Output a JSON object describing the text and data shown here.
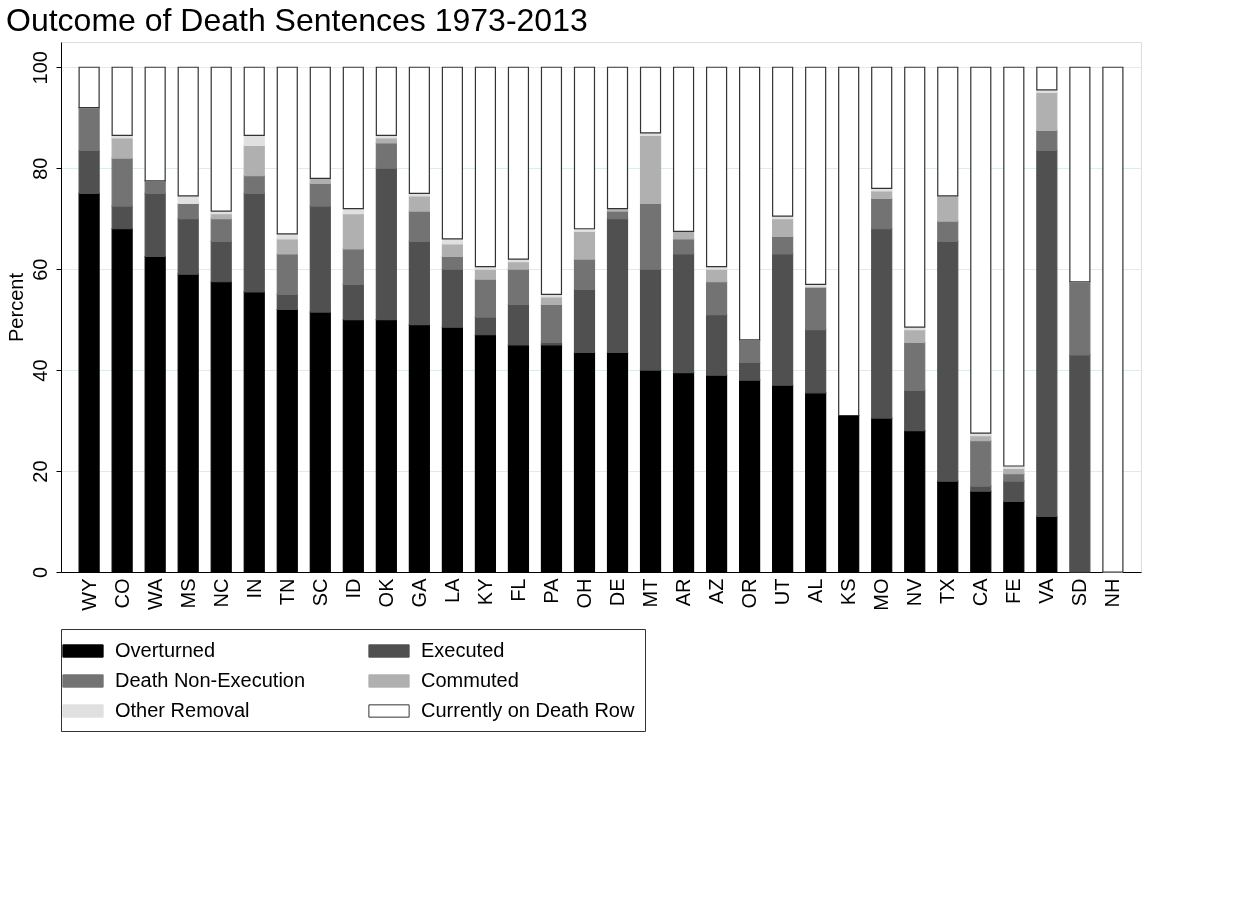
{
  "chart_data": {
    "type": "bar",
    "stacked": true,
    "title": "Outcome of Death Sentences 1973-2013",
    "ylabel": "Percent",
    "categories": [
      "WY",
      "CO",
      "WA",
      "MS",
      "NC",
      "IN",
      "TN",
      "SC",
      "ID",
      "OK",
      "GA",
      "LA",
      "KY",
      "FL",
      "PA",
      "OH",
      "DE",
      "MT",
      "AR",
      "AZ",
      "OR",
      "UT",
      "AL",
      "KS",
      "MO",
      "NV",
      "TX",
      "CA",
      "FE",
      "VA",
      "SD",
      "NH"
    ],
    "ylim": [
      0,
      105
    ],
    "yticks": [
      0,
      20,
      40,
      60,
      80,
      100
    ],
    "grid": "y",
    "legend": "bottom",
    "series": [
      {
        "name": "Overturned",
        "color": "#000000",
        "values": [
          75,
          68,
          62.5,
          59,
          57.5,
          55.5,
          52,
          51.5,
          50,
          50,
          49,
          48.5,
          47,
          45,
          45,
          43.5,
          43.5,
          40,
          39.5,
          39,
          38,
          37,
          35.5,
          31,
          30.5,
          28,
          18,
          16,
          14,
          11,
          0,
          0
        ]
      },
      {
        "name": "Executed",
        "color": "#505050",
        "values": [
          8.5,
          4.5,
          12.5,
          11,
          8,
          19.5,
          3,
          21,
          7,
          30,
          16.5,
          11.5,
          3.5,
          8,
          0.5,
          12.5,
          26.5,
          20,
          23.5,
          12,
          3.5,
          26,
          12.5,
          0,
          37.5,
          8,
          47.5,
          1,
          4,
          72.5,
          43,
          0
        ]
      },
      {
        "name": "Death Non-Execution",
        "color": "#737373",
        "values": [
          8.5,
          9.5,
          2.5,
          3,
          4.5,
          3.5,
          8,
          4.5,
          7,
          5,
          6,
          2.5,
          7.5,
          7,
          7.5,
          6,
          1.5,
          13,
          3,
          6.5,
          4.5,
          3.5,
          8.5,
          0,
          6,
          9.5,
          4,
          9,
          1.5,
          4,
          14.5,
          0
        ]
      },
      {
        "name": "Commuted",
        "color": "#b0b0b0",
        "values": [
          0,
          4,
          0,
          0,
          1,
          6,
          3,
          1,
          7,
          1,
          3,
          2.5,
          2,
          1.5,
          1.5,
          5.5,
          0.5,
          13.5,
          1.5,
          2.5,
          0,
          3.5,
          0,
          0,
          1.5,
          2.5,
          5,
          1,
          1,
          7.5,
          0,
          0
        ]
      },
      {
        "name": "Other Removal",
        "color": "#e0e0e0",
        "values": [
          0,
          0.5,
          0,
          1.5,
          0.5,
          2,
          1,
          0,
          1,
          0.5,
          0.5,
          1,
          0.5,
          0.5,
          0.5,
          0.5,
          0,
          0.5,
          0,
          0.5,
          0,
          0.5,
          0.5,
          0,
          0.5,
          0.5,
          0,
          0.5,
          0.5,
          0.5,
          0,
          0
        ]
      },
      {
        "name": "Currently on Death Row",
        "color": "#ffffff",
        "values": [
          8,
          13.5,
          22.5,
          25.5,
          28.5,
          13.5,
          33,
          22,
          28,
          13.5,
          25,
          34,
          39.5,
          38,
          45,
          32,
          28,
          13,
          32.5,
          39.5,
          54,
          29.5,
          43,
          69,
          24,
          51.5,
          25.5,
          72.5,
          79,
          4.5,
          42.5,
          100
        ]
      }
    ]
  }
}
